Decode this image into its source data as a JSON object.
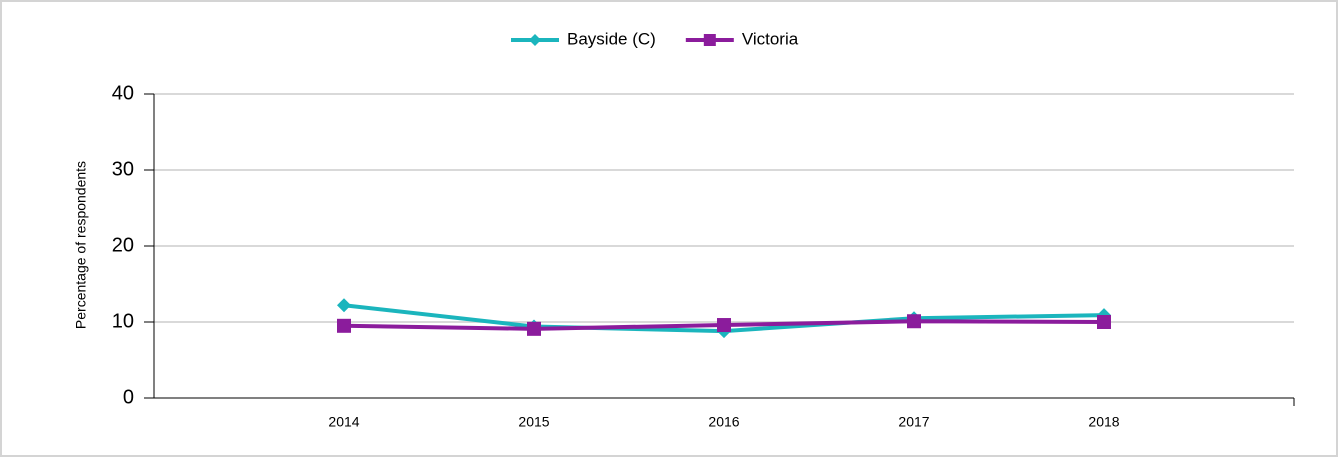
{
  "chart_data": {
    "type": "line",
    "y_label": "Percentage of respondents",
    "categories": [
      "2014",
      "2015",
      "2016",
      "2017",
      "2018"
    ],
    "series": [
      {
        "name": "Bayside (C)",
        "color": "#1bb5bd",
        "marker": "diamond",
        "values": [
          12.2,
          9.4,
          8.8,
          10.5,
          10.9
        ]
      },
      {
        "name": "Victoria",
        "color": "#8b1c9c",
        "marker": "square",
        "values": [
          9.5,
          9.1,
          9.6,
          10.1,
          10.0
        ]
      }
    ],
    "ylim": [
      0,
      40
    ],
    "yticks": [
      0,
      10,
      20,
      30,
      40
    ],
    "grid": true,
    "legend": "top"
  }
}
